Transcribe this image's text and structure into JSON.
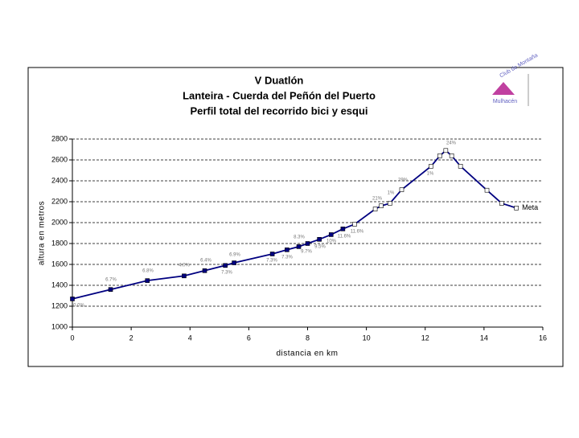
{
  "chart_data": {
    "type": "line",
    "title": "V Duatlón",
    "subtitle": "Lanteira - Cuerda del Peñón del Puerto",
    "subtitle2": "Perfil total del recorrido bici y esqui",
    "logo_text": [
      "Club de Montaña",
      "Mulhacén"
    ],
    "x_label": "distancia en km",
    "y_label": "altura en metros",
    "x": [
      0,
      1.3,
      2.55,
      3.8,
      4.5,
      5.2,
      5.5,
      6.8,
      7.3,
      7.7,
      8.0,
      8.4,
      8.8,
      9.2,
      9.6,
      10.3,
      10.5,
      10.8,
      11.2,
      12.2,
      12.5,
      12.7,
      12.9,
      13.2,
      14.1,
      14.6,
      15.1
    ],
    "values": [
      1270,
      1360,
      1445,
      1490,
      1540,
      1590,
      1615,
      1700,
      1740,
      1770,
      1800,
      1840,
      1885,
      1940,
      1985,
      2130,
      2160,
      2185,
      2315,
      2540,
      2640,
      2690,
      2640,
      2540,
      2310,
      2185,
      2140
    ],
    "color": "#000080",
    "marker_fills": [
      "#000080",
      "#000080",
      "#000080",
      "#000080",
      "#000080",
      "#000080",
      "#000080",
      "#000080",
      "#000080",
      "#000080",
      "#000080",
      "#000080",
      "#000080",
      "#000080",
      "#ffffff",
      "#ffffff",
      "#ffffff",
      "#ffffff",
      "#ffffff",
      "#ffffff",
      "#ffffff",
      "#ffffff",
      "#ffffff",
      "#ffffff",
      "#ffffff",
      "#ffffff",
      "#ffffff"
    ],
    "end_label": "Meta",
    "annotations": [
      "0.0%",
      "6.7%",
      "6.8%",
      "4.0%",
      "6.4%",
      "7.3%",
      "6.9%",
      "7.3%",
      "7.3%",
      "8.3%",
      "9.7%",
      "9.5%",
      "10%",
      "11.6%",
      "11.6%",
      "21%",
      "1%",
      "29%",
      "1%",
      "24%"
    ],
    "xlim": [
      0,
      16
    ],
    "xticks": [
      0,
      2,
      4,
      6,
      8,
      10,
      12,
      14,
      16
    ],
    "ylim": [
      1000,
      2800
    ],
    "yticks": [
      1000,
      1200,
      1400,
      1600,
      1800,
      2000,
      2200,
      2400,
      2600,
      2800
    ],
    "grid": true
  }
}
